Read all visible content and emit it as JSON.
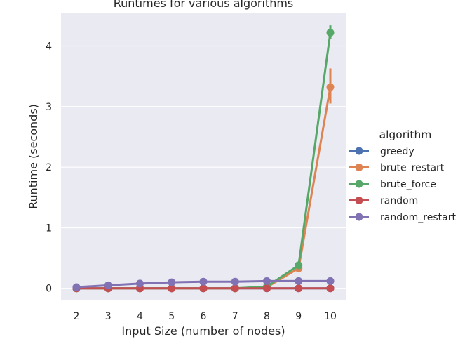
{
  "chart_data": {
    "type": "line",
    "title": "Runtimes for various algorithms",
    "xlabel": "Input Size (number of nodes)",
    "ylabel": "Runtime (seconds)",
    "categories": [
      "2",
      "3",
      "4",
      "5",
      "6",
      "7",
      "8",
      "9",
      "10"
    ],
    "y_ticks": [
      0,
      1,
      2,
      3,
      4
    ],
    "ylim": [
      -0.2,
      4.55
    ],
    "grid": true,
    "legend_position": "right",
    "legend_title": "algorithm",
    "series": [
      {
        "name": "greedy",
        "color": "#4c72b0",
        "values": [
          0.0,
          0.0,
          0.0,
          0.0,
          0.0,
          0.0,
          0.0,
          0.0,
          0.0
        ]
      },
      {
        "name": "brute_restart",
        "color": "#dd8452",
        "values": [
          0.0,
          0.0,
          0.0,
          0.0,
          0.0,
          0.0,
          0.02,
          0.33,
          3.32
        ],
        "error": [
          null,
          null,
          null,
          null,
          null,
          null,
          null,
          [
            0.28,
            0.38
          ],
          [
            3.05,
            3.63
          ]
        ]
      },
      {
        "name": "brute_force",
        "color": "#55a868",
        "values": [
          0.0,
          0.0,
          0.0,
          0.0,
          0.0,
          0.0,
          0.03,
          0.38,
          4.22
        ],
        "error": [
          null,
          null,
          null,
          null,
          null,
          null,
          null,
          [
            0.33,
            0.42
          ],
          [
            4.12,
            4.34
          ]
        ]
      },
      {
        "name": "random",
        "color": "#c44e52",
        "values": [
          0.0,
          0.0,
          0.0,
          0.0,
          0.0,
          0.0,
          0.0,
          0.0,
          0.0
        ]
      },
      {
        "name": "random_restart",
        "color": "#8172b3",
        "values": [
          0.02,
          0.05,
          0.08,
          0.1,
          0.11,
          0.11,
          0.12,
          0.12,
          0.12
        ]
      }
    ]
  }
}
